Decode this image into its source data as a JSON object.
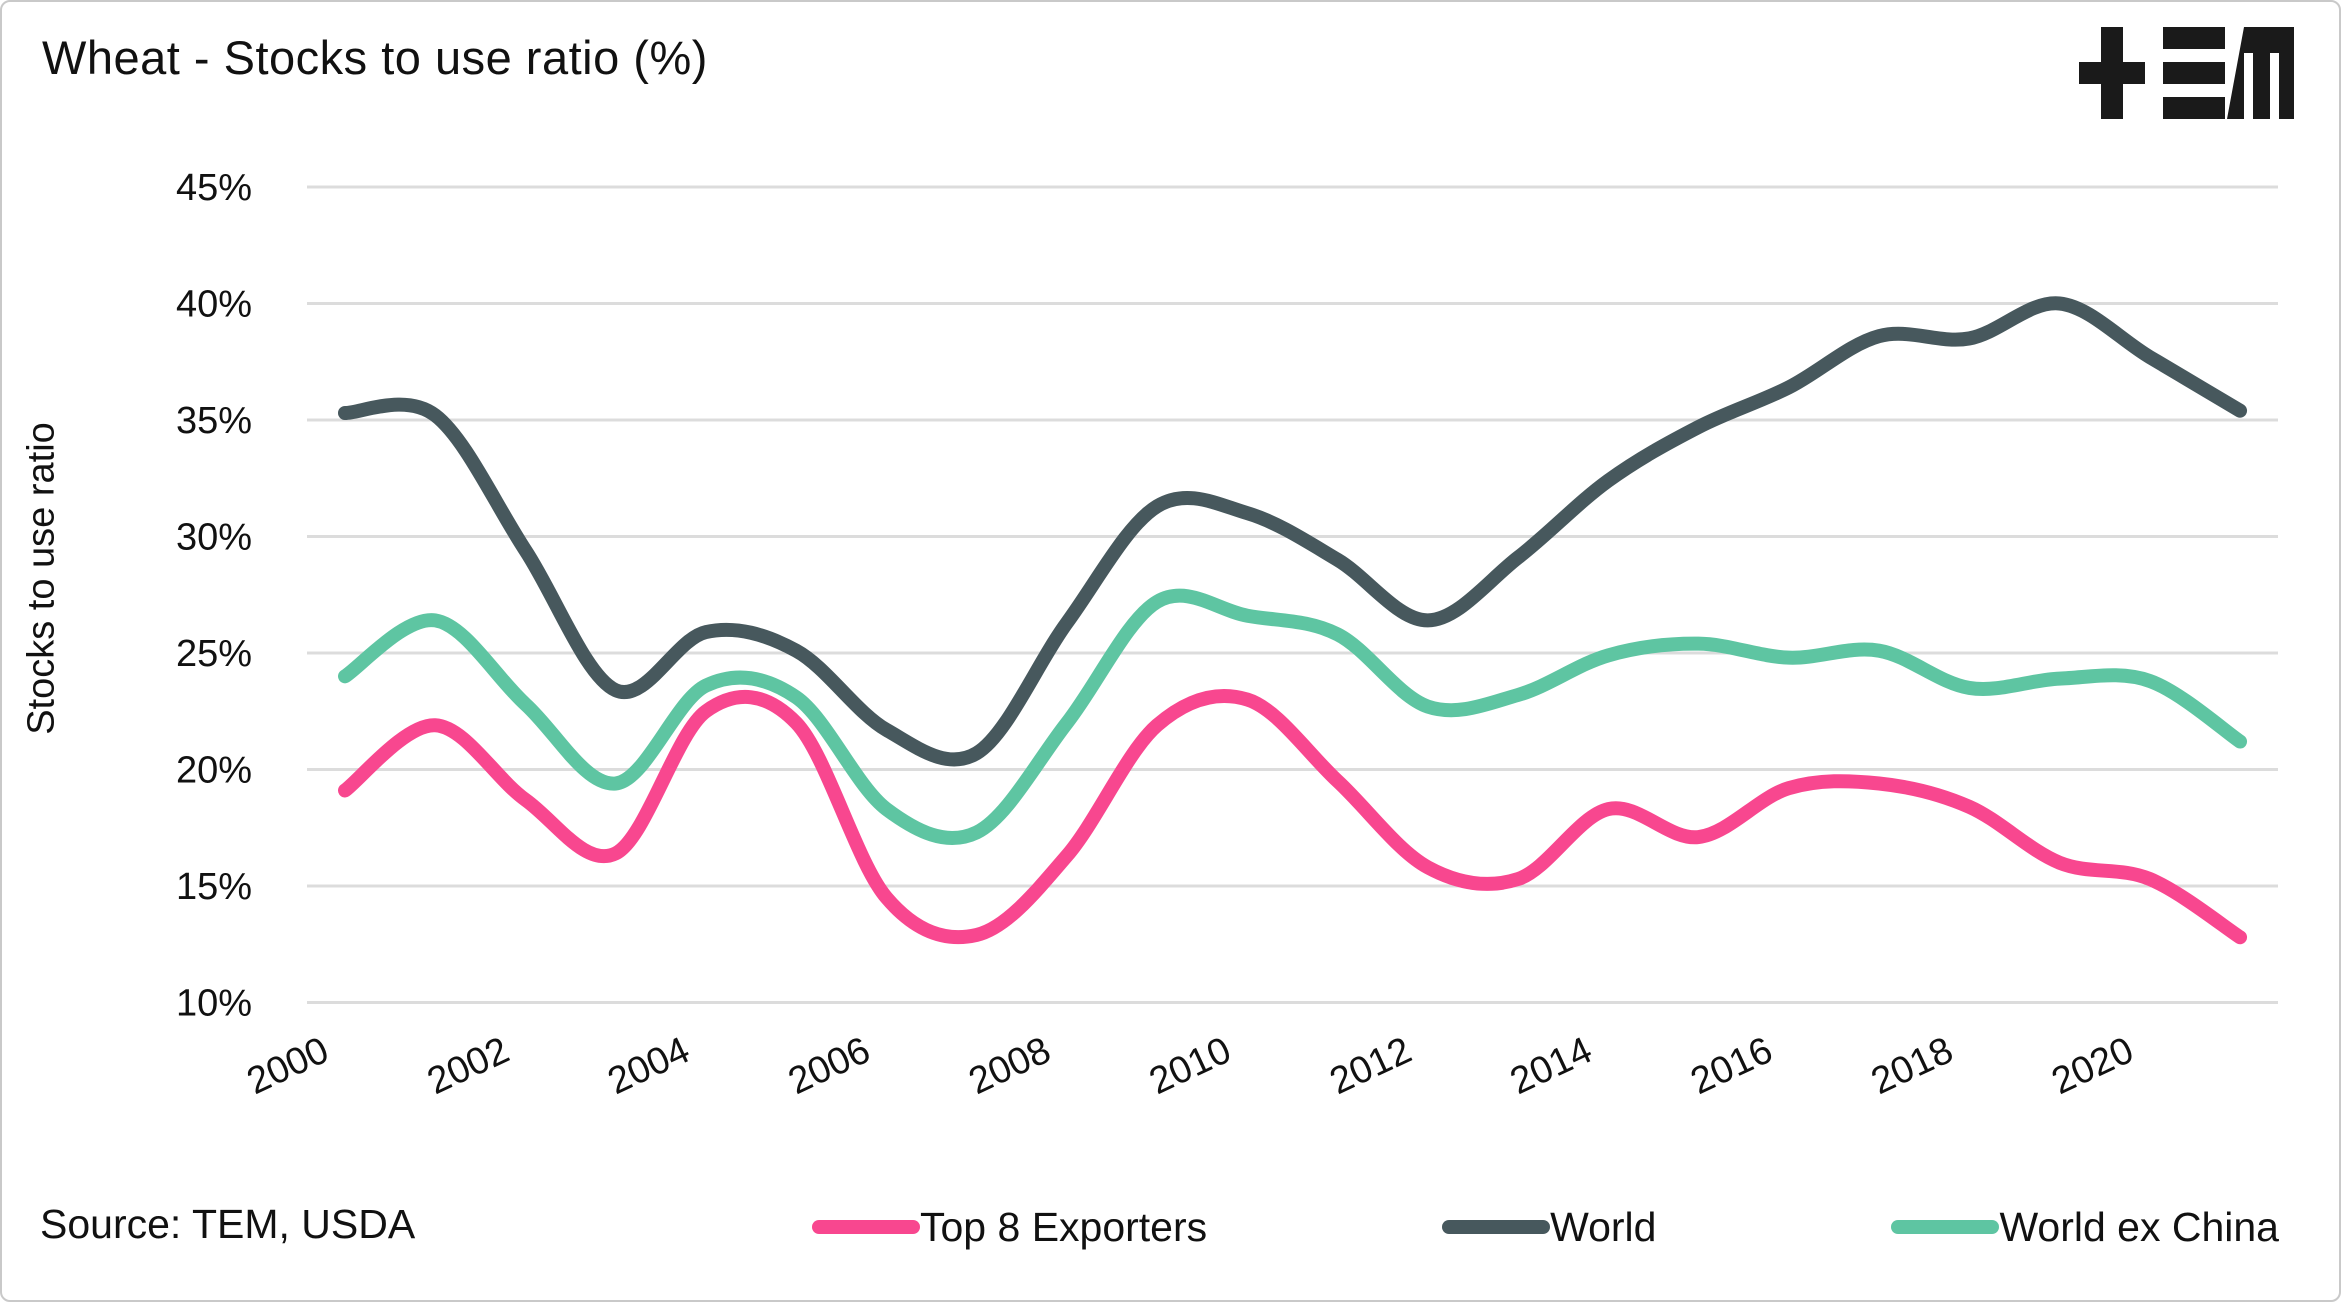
{
  "header": {
    "title": "Wheat - Stocks to use ratio (%)",
    "brand": "TEM"
  },
  "footer": {
    "source": "Source: TEM, USDA"
  },
  "colors": {
    "top8": "#F8478F",
    "world": "#47585D",
    "world_ex_china": "#5EC5A2",
    "gridline": "#DCDCDC",
    "text": "#111111",
    "logo": "#1a1a1a"
  },
  "chart_data": {
    "type": "line",
    "title": "Wheat - Stocks to use ratio (%)",
    "ylabel": "Stocks to use ratio",
    "xlabel": "",
    "ylim": [
      10,
      45
    ],
    "ytick_step": 5,
    "ytick_labels": [
      "45%",
      "40%",
      "35%",
      "30%",
      "25%",
      "20%",
      "15%",
      "10%"
    ],
    "xtick_labels": [
      "2000",
      "2002",
      "2004",
      "2006",
      "2008",
      "2010",
      "2012",
      "2014",
      "2016",
      "2018",
      "2020"
    ],
    "grid": "horizontal-only",
    "legend_position": "bottom",
    "x": [
      2000,
      2001,
      2002,
      2003,
      2004,
      2005,
      2006,
      2007,
      2008,
      2009,
      2010,
      2011,
      2012,
      2013,
      2014,
      2015,
      2016,
      2017,
      2018,
      2019,
      2020,
      2021
    ],
    "series": [
      {
        "name": "Top 8 Exporters",
        "color_key": "top8",
        "values": [
          19.1,
          21.9,
          18.7,
          16.4,
          22.5,
          22.0,
          14.5,
          12.9,
          16.3,
          21.9,
          23.0,
          19.5,
          15.8,
          15.3,
          18.3,
          17.1,
          19.2,
          19.4,
          18.4,
          16.0,
          15.3,
          12.8
        ]
      },
      {
        "name": "World",
        "color_key": "world",
        "values": [
          35.3,
          35.2,
          29.4,
          23.4,
          25.9,
          25.1,
          21.7,
          20.7,
          26.3,
          31.3,
          31.0,
          29.0,
          26.4,
          29.1,
          32.4,
          34.7,
          36.4,
          38.6,
          38.5,
          40.0,
          37.7,
          35.4
        ]
      },
      {
        "name": "World ex China",
        "color_key": "world_ex_china",
        "values": [
          24.0,
          26.4,
          22.8,
          19.4,
          23.6,
          23.1,
          18.3,
          17.3,
          22.0,
          27.2,
          26.6,
          25.8,
          22.7,
          23.2,
          24.9,
          25.4,
          24.8,
          25.1,
          23.5,
          23.9,
          23.8,
          21.2
        ]
      }
    ],
    "legend_order": [
      "Top 8 Exporters",
      "World",
      "World ex China"
    ]
  }
}
